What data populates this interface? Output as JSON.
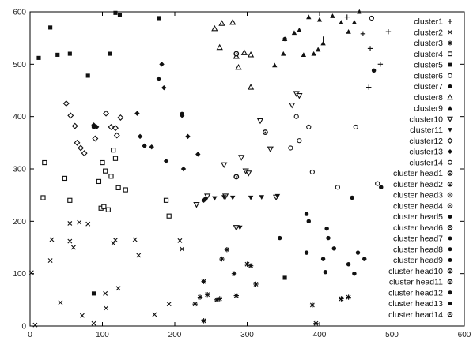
{
  "chart_data": {
    "type": "scatter",
    "title": "",
    "xlabel": "",
    "ylabel": "",
    "xlim": [
      0,
      600
    ],
    "ylim": [
      0,
      600
    ],
    "xticks": [
      0,
      100,
      200,
      300,
      400,
      500,
      600
    ],
    "yticks": [
      0,
      100,
      200,
      300,
      400,
      500,
      600
    ],
    "grid": false,
    "legend_position": "right",
    "series": [
      {
        "name": "cluster1",
        "marker": "plus",
        "points": [
          [
            405,
            548
          ],
          [
            438,
            590
          ],
          [
            460,
            558
          ],
          [
            470,
            530
          ],
          [
            484,
            500
          ],
          [
            468,
            456
          ],
          [
            495,
            562
          ]
        ]
      },
      {
        "name": "cluster2",
        "marker": "x",
        "points": [
          [
            2,
            102
          ],
          [
            7,
            2
          ],
          [
            30,
            165
          ],
          [
            28,
            125
          ],
          [
            42,
            45
          ],
          [
            55,
            196
          ],
          [
            55,
            162
          ],
          [
            60,
            150
          ],
          [
            68,
            198
          ],
          [
            72,
            20
          ],
          [
            80,
            195
          ],
          [
            88,
            5
          ],
          [
            104,
            62
          ],
          [
            105,
            34
          ],
          [
            115,
            158
          ],
          [
            118,
            164
          ],
          [
            122,
            72
          ],
          [
            145,
            165
          ],
          [
            150,
            135
          ],
          [
            172,
            22
          ],
          [
            192,
            42
          ],
          [
            207,
            163
          ],
          [
            210,
            147
          ]
        ]
      },
      {
        "name": "cluster3",
        "marker": "star",
        "points": [
          [
            228,
            42
          ],
          [
            235,
            55
          ],
          [
            240,
            85
          ],
          [
            245,
            60
          ],
          [
            240,
            10
          ],
          [
            258,
            50
          ],
          [
            262,
            52
          ],
          [
            265,
            128
          ],
          [
            272,
            146
          ],
          [
            282,
            100
          ],
          [
            285,
            58
          ],
          [
            300,
            118
          ],
          [
            305,
            115
          ],
          [
            312,
            80
          ],
          [
            390,
            40
          ],
          [
            395,
            5
          ],
          [
            430,
            52
          ],
          [
            440,
            55
          ]
        ]
      },
      {
        "name": "cluster4",
        "marker": "open-square",
        "points": [
          [
            18,
            245
          ],
          [
            20,
            312
          ],
          [
            48,
            282
          ],
          [
            55,
            240
          ],
          [
            95,
            276
          ],
          [
            98,
            225
          ],
          [
            100,
            312
          ],
          [
            102,
            228
          ],
          [
            104,
            296
          ],
          [
            108,
            222
          ],
          [
            112,
            286
          ],
          [
            115,
            336
          ],
          [
            118,
            320
          ],
          [
            122,
            264
          ],
          [
            132,
            260
          ],
          [
            188,
            240
          ],
          [
            192,
            210
          ]
        ]
      },
      {
        "name": "cluster5",
        "marker": "filled-square",
        "points": [
          [
            12,
            512
          ],
          [
            28,
            570
          ],
          [
            38,
            518
          ],
          [
            55,
            520
          ],
          [
            80,
            478
          ],
          [
            110,
            520
          ],
          [
            118,
            598
          ],
          [
            124,
            594
          ],
          [
            178,
            588
          ],
          [
            88,
            62
          ],
          [
            352,
            92
          ]
        ]
      },
      {
        "name": "cluster6",
        "marker": "open-circle",
        "points": [
          [
            360,
            340
          ],
          [
            368,
            400
          ],
          [
            372,
            354
          ],
          [
            385,
            380
          ],
          [
            390,
            294
          ],
          [
            425,
            265
          ],
          [
            450,
            380
          ],
          [
            472,
            588
          ],
          [
            480,
            272
          ]
        ]
      },
      {
        "name": "cluster7",
        "marker": "filled-circle",
        "points": [
          [
            352,
            548
          ],
          [
            475,
            488
          ],
          [
            382,
            214
          ],
          [
            410,
            186
          ],
          [
            412,
            168
          ],
          [
            420,
            148
          ],
          [
            405,
            128
          ],
          [
            440,
            118
          ],
          [
            448,
            100
          ],
          [
            462,
            128
          ],
          [
            445,
            245
          ]
        ]
      },
      {
        "name": "cluster8",
        "marker": "open-triangle",
        "points": [
          [
            255,
            568
          ],
          [
            265,
            578
          ],
          [
            262,
            532
          ],
          [
            280,
            580
          ],
          [
            285,
            515
          ],
          [
            288,
            494
          ],
          [
            296,
            522
          ],
          [
            305,
            518
          ],
          [
            305,
            456
          ]
        ]
      },
      {
        "name": "cluster9",
        "marker": "filled-triangle",
        "points": [
          [
            338,
            498
          ],
          [
            350,
            520
          ],
          [
            352,
            548
          ],
          [
            365,
            560
          ],
          [
            372,
            565
          ],
          [
            378,
            518
          ],
          [
            385,
            590
          ],
          [
            392,
            520
          ],
          [
            398,
            528
          ],
          [
            400,
            585
          ],
          [
            405,
            540
          ],
          [
            418,
            592
          ],
          [
            430,
            580
          ],
          [
            440,
            562
          ],
          [
            448,
            580
          ],
          [
            455,
            600
          ]
        ]
      },
      {
        "name": "cluster10",
        "marker": "open-triangle-down",
        "points": [
          [
            230,
            232
          ],
          [
            245,
            248
          ],
          [
            270,
            248
          ],
          [
            285,
            188
          ],
          [
            268,
            308
          ],
          [
            292,
            322
          ],
          [
            298,
            296
          ],
          [
            302,
            292
          ],
          [
            318,
            392
          ],
          [
            332,
            338
          ],
          [
            340,
            246
          ],
          [
            368,
            444
          ],
          [
            372,
            440
          ],
          [
            362,
            422
          ]
        ]
      },
      {
        "name": "cluster11",
        "marker": "filled-triangle-down",
        "points": [
          [
            255,
            244
          ],
          [
            268,
            246
          ],
          [
            280,
            245
          ],
          [
            290,
            188
          ],
          [
            305,
            245
          ],
          [
            320,
            246
          ],
          [
            342,
            248
          ]
        ]
      },
      {
        "name": "cluster12",
        "marker": "open-diamond",
        "points": [
          [
            50,
            425
          ],
          [
            56,
            402
          ],
          [
            62,
            382
          ],
          [
            65,
            350
          ],
          [
            70,
            340
          ],
          [
            75,
            330
          ],
          [
            90,
            358
          ],
          [
            105,
            406
          ],
          [
            112,
            380
          ],
          [
            118,
            378
          ],
          [
            120,
            364
          ],
          [
            125,
            398
          ]
        ]
      },
      {
        "name": "cluster13",
        "marker": "filled-diamond",
        "points": [
          [
            88,
            384
          ],
          [
            92,
            380
          ],
          [
            148,
            406
          ],
          [
            152,
            362
          ],
          [
            158,
            344
          ],
          [
            168,
            342
          ],
          [
            178,
            472
          ],
          [
            182,
            500
          ],
          [
            185,
            455
          ],
          [
            188,
            315
          ],
          [
            210,
            402
          ],
          [
            212,
            300
          ],
          [
            218,
            362
          ],
          [
            232,
            328
          ],
          [
            240,
            240
          ]
        ]
      },
      {
        "name": "cluster14",
        "marker": "open-circle-dot",
        "points": [
          [
            285,
            520
          ],
          [
            285,
            285
          ],
          [
            325,
            370
          ]
        ]
      },
      {
        "name": "cluster head2",
        "marker": "filled-circle",
        "points": [
          [
            88,
            380
          ]
        ]
      },
      {
        "name": "cluster head3",
        "marker": "filled-circle",
        "points": [
          [
            242,
            242
          ]
        ]
      },
      {
        "name": "cluster head4",
        "marker": "filled-circle",
        "points": [
          [
            210,
            405
          ]
        ]
      },
      {
        "name": "cluster head5",
        "marker": "filled-circle",
        "points": [
          [
            345,
            168
          ]
        ]
      },
      {
        "name": "cluster head6",
        "marker": "filled-circle",
        "points": [
          [
            382,
            140
          ]
        ]
      },
      {
        "name": "cluster head7",
        "marker": "filled-circle",
        "points": [
          [
            385,
            200
          ]
        ]
      },
      {
        "name": "cluster head8",
        "marker": "filled-circle",
        "points": [
          [
            408,
            103
          ]
        ]
      },
      {
        "name": "cluster head9",
        "marker": "filled-circle",
        "points": [
          [
            453,
            140
          ]
        ]
      },
      {
        "name": "cluster head10",
        "marker": "filled-circle",
        "points": [
          [
            485,
            265
          ]
        ]
      }
    ]
  },
  "legend": {
    "entries": [
      {
        "label": "cluster1",
        "marker": "plus"
      },
      {
        "label": "cluster2",
        "marker": "x"
      },
      {
        "label": "cluster3",
        "marker": "star"
      },
      {
        "label": "cluster4",
        "marker": "open-square"
      },
      {
        "label": "cluster5",
        "marker": "filled-square"
      },
      {
        "label": "cluster6",
        "marker": "open-circle"
      },
      {
        "label": "cluster7",
        "marker": "filled-circle"
      },
      {
        "label": "cluster8",
        "marker": "open-triangle"
      },
      {
        "label": "cluster9",
        "marker": "filled-triangle"
      },
      {
        "label": "cluster10",
        "marker": "open-triangle-down"
      },
      {
        "label": "cluster11",
        "marker": "filled-triangle-down"
      },
      {
        "label": "cluster12",
        "marker": "open-diamond"
      },
      {
        "label": "cluster13",
        "marker": "filled-diamond"
      },
      {
        "label": "cluster14",
        "marker": "open-circle"
      },
      {
        "label": "cluster head1",
        "marker": "open-circle-dot"
      },
      {
        "label": "cluster head2",
        "marker": "open-circle-dot"
      },
      {
        "label": "cluster head3",
        "marker": "open-circle-dot"
      },
      {
        "label": "cluster head4",
        "marker": "open-circle-dot"
      },
      {
        "label": "cluster head5",
        "marker": "filled-circle"
      },
      {
        "label": "cluster head6",
        "marker": "open-circle-dot"
      },
      {
        "label": "cluster head7",
        "marker": "filled-circle"
      },
      {
        "label": "cluster head8",
        "marker": "filled-circle"
      },
      {
        "label": "cluster head9",
        "marker": "filled-circle"
      },
      {
        "label": "cluster head10",
        "marker": "open-circle-dot"
      },
      {
        "label": "cluster head11",
        "marker": "open-circle-dot"
      },
      {
        "label": "cluster head12",
        "marker": "filled-circle"
      },
      {
        "label": "cluster head13",
        "marker": "filled-circle"
      },
      {
        "label": "cluster head14",
        "marker": "open-circle-dot"
      }
    ]
  },
  "colors": {
    "ink": "#111111",
    "axis": "#000000",
    "background": "#ffffff"
  }
}
